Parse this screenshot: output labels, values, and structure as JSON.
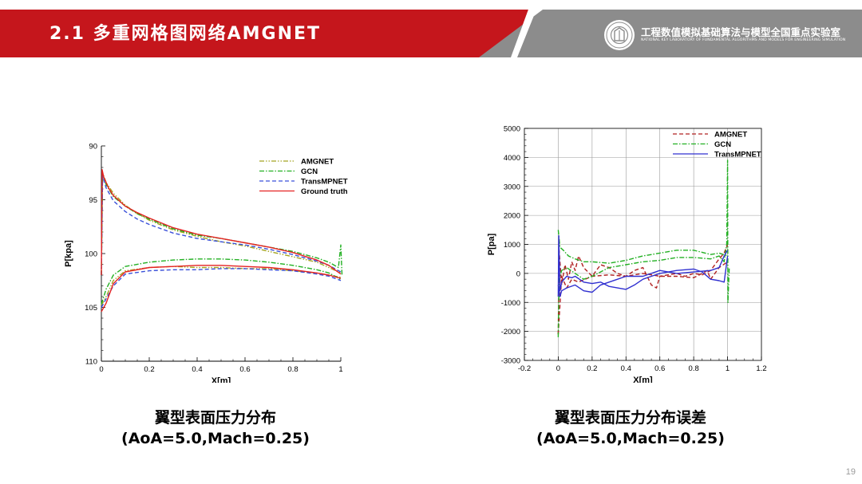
{
  "header": {
    "title": "2.1 多重网格图网络AMGNET",
    "lab_name": "工程数值模拟基础算法与模型全国重点实验室",
    "lab_name_en": "NATIONAL KEY LABORATORY OF FUNDAMENTAL ALGORITHMS AND MODELS FOR ENGINEERING SIMULATION",
    "logo_icon": "lab-seal-icon",
    "colors": {
      "red": "#c5161c",
      "grey": "#8c8c8c"
    }
  },
  "captions": {
    "left_line1": "翼型表面压力分布",
    "left_line2": "(AoA=5.0,Mach=0.25)",
    "right_line1": "翼型表面压力分布误差",
    "right_line2": "(AoA=5.0,Mach=0.25)"
  },
  "page_number": "19",
  "chart_data": [
    {
      "type": "line",
      "xlabel": "X[m]",
      "ylabel": "P[kpa]",
      "xlim": [
        0,
        1
      ],
      "ylim": [
        110,
        90
      ],
      "y_reversed": true,
      "xticks": [
        "0",
        "0.2",
        "0.4",
        "0.6",
        "0.8",
        "1"
      ],
      "yticks": [
        "90",
        "95",
        "100",
        "105",
        "110"
      ],
      "legend_position": "top-right",
      "grid": false,
      "series": [
        {
          "name": "AMGNET",
          "style": "dash-dot-dot",
          "color": "#a5a521",
          "upper": [
            [
              0,
              102.0
            ],
            [
              0.005,
              92.5
            ],
            [
              0.02,
              93.4
            ],
            [
              0.05,
              94.4
            ],
            [
              0.1,
              95.5
            ],
            [
              0.15,
              96.3
            ],
            [
              0.2,
              96.9
            ],
            [
              0.3,
              97.8
            ],
            [
              0.4,
              98.4
            ],
            [
              0.5,
              98.9
            ],
            [
              0.6,
              99.3
            ],
            [
              0.7,
              99.8
            ],
            [
              0.8,
              100.3
            ],
            [
              0.9,
              100.8
            ],
            [
              0.95,
              101.3
            ],
            [
              1.0,
              101.8
            ]
          ],
          "lower": [
            [
              0,
              104.8
            ],
            [
              0.02,
              104.0
            ],
            [
              0.05,
              102.5
            ],
            [
              0.1,
              101.6
            ],
            [
              0.2,
              101.3
            ],
            [
              0.3,
              101.2
            ],
            [
              0.4,
              101.3
            ],
            [
              0.5,
              101.3
            ],
            [
              0.6,
              101.4
            ],
            [
              0.7,
              101.4
            ],
            [
              0.8,
              101.6
            ],
            [
              0.9,
              101.8
            ],
            [
              0.95,
              102.0
            ],
            [
              1.0,
              102.2
            ]
          ]
        },
        {
          "name": "GCN",
          "style": "dash-dot",
          "color": "#22b022",
          "upper": [
            [
              0,
              102.0
            ],
            [
              0.005,
              92.6
            ],
            [
              0.02,
              93.6
            ],
            [
              0.05,
              94.7
            ],
            [
              0.1,
              95.6
            ],
            [
              0.15,
              96.3
            ],
            [
              0.2,
              96.8
            ],
            [
              0.3,
              97.7
            ],
            [
              0.4,
              98.3
            ],
            [
              0.5,
              98.6
            ],
            [
              0.6,
              99.0
            ],
            [
              0.7,
              99.4
            ],
            [
              0.8,
              99.8
            ],
            [
              0.9,
              100.4
            ],
            [
              0.95,
              100.8
            ],
            [
              0.99,
              101.3
            ],
            [
              1.0,
              99.2
            ],
            [
              1.005,
              102.0
            ]
          ],
          "lower": [
            [
              0,
              104.7
            ],
            [
              0.02,
              103.3
            ],
            [
              0.05,
              102.0
            ],
            [
              0.1,
              101.2
            ],
            [
              0.2,
              100.8
            ],
            [
              0.3,
              100.6
            ],
            [
              0.4,
              100.5
            ],
            [
              0.5,
              100.5
            ],
            [
              0.6,
              100.6
            ],
            [
              0.7,
              100.8
            ],
            [
              0.8,
              101.1
            ],
            [
              0.9,
              101.5
            ],
            [
              0.95,
              101.8
            ],
            [
              1.0,
              102.4
            ]
          ]
        },
        {
          "name": "TransMPNET",
          "style": "dash",
          "color": "#3a50d9",
          "upper": [
            [
              0,
              102.0
            ],
            [
              0.005,
              92.8
            ],
            [
              0.02,
              93.9
            ],
            [
              0.05,
              95.1
            ],
            [
              0.1,
              96.1
            ],
            [
              0.15,
              96.8
            ],
            [
              0.2,
              97.3
            ],
            [
              0.3,
              98.1
            ],
            [
              0.4,
              98.6
            ],
            [
              0.5,
              98.9
            ],
            [
              0.6,
              99.2
            ],
            [
              0.7,
              99.6
            ],
            [
              0.8,
              100.1
            ],
            [
              0.9,
              100.7
            ],
            [
              0.95,
              101.1
            ],
            [
              1.0,
              101.7
            ]
          ],
          "lower": [
            [
              0,
              105.0
            ],
            [
              0.02,
              104.2
            ],
            [
              0.05,
              103.0
            ],
            [
              0.1,
              101.9
            ],
            [
              0.2,
              101.6
            ],
            [
              0.3,
              101.5
            ],
            [
              0.4,
              101.5
            ],
            [
              0.5,
              101.4
            ],
            [
              0.6,
              101.4
            ],
            [
              0.7,
              101.5
            ],
            [
              0.8,
              101.6
            ],
            [
              0.9,
              101.9
            ],
            [
              0.95,
              102.1
            ],
            [
              1.0,
              102.5
            ]
          ]
        },
        {
          "name": "Ground truth",
          "style": "solid",
          "color": "#e52222",
          "upper": [
            [
              0,
              102.0
            ],
            [
              0.003,
              92.2
            ],
            [
              0.01,
              92.9
            ],
            [
              0.03,
              93.9
            ],
            [
              0.05,
              94.6
            ],
            [
              0.1,
              95.6
            ],
            [
              0.15,
              96.2
            ],
            [
              0.2,
              96.7
            ],
            [
              0.3,
              97.6
            ],
            [
              0.4,
              98.2
            ],
            [
              0.5,
              98.6
            ],
            [
              0.6,
              99.0
            ],
            [
              0.7,
              99.4
            ],
            [
              0.8,
              99.9
            ],
            [
              0.9,
              100.6
            ],
            [
              0.95,
              101.1
            ],
            [
              1.0,
              101.9
            ]
          ],
          "lower": [
            [
              0,
              105.4
            ],
            [
              0.02,
              104.6
            ],
            [
              0.05,
              102.8
            ],
            [
              0.1,
              101.7
            ],
            [
              0.2,
              101.3
            ],
            [
              0.3,
              101.2
            ],
            [
              0.4,
              101.1
            ],
            [
              0.5,
              101.1
            ],
            [
              0.6,
              101.2
            ],
            [
              0.7,
              101.3
            ],
            [
              0.8,
              101.5
            ],
            [
              0.9,
              101.8
            ],
            [
              0.95,
              102.0
            ],
            [
              1.0,
              102.3
            ]
          ]
        }
      ]
    },
    {
      "type": "line",
      "xlabel": "X[m]",
      "ylabel": "P[pa]",
      "xlim": [
        -0.2,
        1.2
      ],
      "ylim": [
        -3000,
        5000
      ],
      "xticks": [
        "-0.2",
        "0",
        "0.2",
        "0.4",
        "0.6",
        "0.8",
        "1",
        "1.2"
      ],
      "yticks": [
        "-3000",
        "-2000",
        "-1000",
        "0",
        "1000",
        "2000",
        "3000",
        "4000",
        "5000"
      ],
      "legend_position": "top-right",
      "grid": true,
      "series": [
        {
          "name": "AMGNET",
          "style": "dash",
          "color": "#b02020",
          "upper": [
            [
              0,
              -2100
            ],
            [
              0.005,
              800
            ],
            [
              0.02,
              -400
            ],
            [
              0.04,
              300
            ],
            [
              0.06,
              -200
            ],
            [
              0.08,
              400
            ],
            [
              0.1,
              100
            ],
            [
              0.12,
              600
            ],
            [
              0.15,
              200
            ],
            [
              0.2,
              -100
            ],
            [
              0.25,
              300
            ],
            [
              0.3,
              200
            ],
            [
              0.35,
              0
            ],
            [
              0.4,
              -100
            ],
            [
              0.45,
              100
            ],
            [
              0.5,
              200
            ],
            [
              0.55,
              -400
            ],
            [
              0.58,
              -500
            ],
            [
              0.6,
              -100
            ],
            [
              0.65,
              -50
            ],
            [
              0.7,
              0
            ],
            [
              0.75,
              -100
            ],
            [
              0.8,
              0
            ],
            [
              0.85,
              -50
            ],
            [
              0.9,
              100
            ],
            [
              0.95,
              500
            ],
            [
              0.98,
              700
            ],
            [
              1.0,
              1000
            ]
          ],
          "lower": [
            [
              0,
              -2100
            ],
            [
              0.02,
              -100
            ],
            [
              0.05,
              -500
            ],
            [
              0.08,
              -200
            ],
            [
              0.12,
              -300
            ],
            [
              0.2,
              -100
            ],
            [
              0.3,
              -50
            ],
            [
              0.4,
              -100
            ],
            [
              0.5,
              0
            ],
            [
              0.6,
              -100
            ],
            [
              0.7,
              -100
            ],
            [
              0.8,
              -150
            ],
            [
              0.85,
              0
            ],
            [
              0.88,
              100
            ],
            [
              0.9,
              -200
            ],
            [
              0.95,
              200
            ],
            [
              1.0,
              400
            ]
          ]
        },
        {
          "name": "GCN",
          "style": "dash-dot",
          "color": "#22b022",
          "upper": [
            [
              0,
              -2200
            ],
            [
              0.005,
              -200
            ],
            [
              0.02,
              100
            ],
            [
              0.05,
              200
            ],
            [
              0.1,
              0
            ],
            [
              0.15,
              -200
            ],
            [
              0.2,
              -100
            ],
            [
              0.3,
              200
            ],
            [
              0.4,
              300
            ],
            [
              0.5,
              400
            ],
            [
              0.6,
              450
            ],
            [
              0.7,
              550
            ],
            [
              0.8,
              550
            ],
            [
              0.9,
              500
            ],
            [
              0.95,
              600
            ],
            [
              0.98,
              400
            ],
            [
              0.995,
              1000
            ],
            [
              1.0,
              3900
            ],
            [
              1.002,
              -1000
            ],
            [
              1.01,
              200
            ]
          ],
          "lower": [
            [
              0,
              1500
            ],
            [
              0.01,
              900
            ],
            [
              0.03,
              800
            ],
            [
              0.06,
              600
            ],
            [
              0.1,
              500
            ],
            [
              0.15,
              400
            ],
            [
              0.2,
              400
            ],
            [
              0.3,
              350
            ],
            [
              0.4,
              450
            ],
            [
              0.5,
              600
            ],
            [
              0.6,
              700
            ],
            [
              0.7,
              800
            ],
            [
              0.8,
              800
            ],
            [
              0.9,
              650
            ],
            [
              0.95,
              700
            ],
            [
              1.0,
              600
            ]
          ]
        },
        {
          "name": "TransMPNET",
          "style": "solid",
          "color": "#3030d0",
          "upper": [
            [
              0,
              -800
            ],
            [
              0.003,
              1300
            ],
            [
              0.01,
              -600
            ],
            [
              0.02,
              -300
            ],
            [
              0.05,
              -100
            ],
            [
              0.08,
              -150
            ],
            [
              0.1,
              -100
            ],
            [
              0.15,
              -300
            ],
            [
              0.2,
              -350
            ],
            [
              0.25,
              -300
            ],
            [
              0.3,
              -450
            ],
            [
              0.35,
              -500
            ],
            [
              0.4,
              -550
            ],
            [
              0.45,
              -400
            ],
            [
              0.5,
              -200
            ],
            [
              0.55,
              -100
            ],
            [
              0.6,
              0
            ],
            [
              0.65,
              50
            ],
            [
              0.7,
              100
            ],
            [
              0.8,
              150
            ],
            [
              0.85,
              50
            ],
            [
              0.9,
              -200
            ],
            [
              0.95,
              -250
            ],
            [
              0.98,
              -300
            ],
            [
              1.0,
              600
            ]
          ],
          "lower": [
            [
              0,
              -400
            ],
            [
              0.01,
              -800
            ],
            [
              0.02,
              -600
            ],
            [
              0.05,
              -500
            ],
            [
              0.1,
              -400
            ],
            [
              0.15,
              -600
            ],
            [
              0.2,
              -650
            ],
            [
              0.25,
              -400
            ],
            [
              0.3,
              -300
            ],
            [
              0.35,
              -200
            ],
            [
              0.4,
              -100
            ],
            [
              0.5,
              -100
            ],
            [
              0.6,
              100
            ],
            [
              0.7,
              0
            ],
            [
              0.8,
              50
            ],
            [
              0.9,
              100
            ],
            [
              0.95,
              200
            ],
            [
              0.98,
              600
            ],
            [
              1.0,
              800
            ]
          ]
        }
      ]
    }
  ]
}
